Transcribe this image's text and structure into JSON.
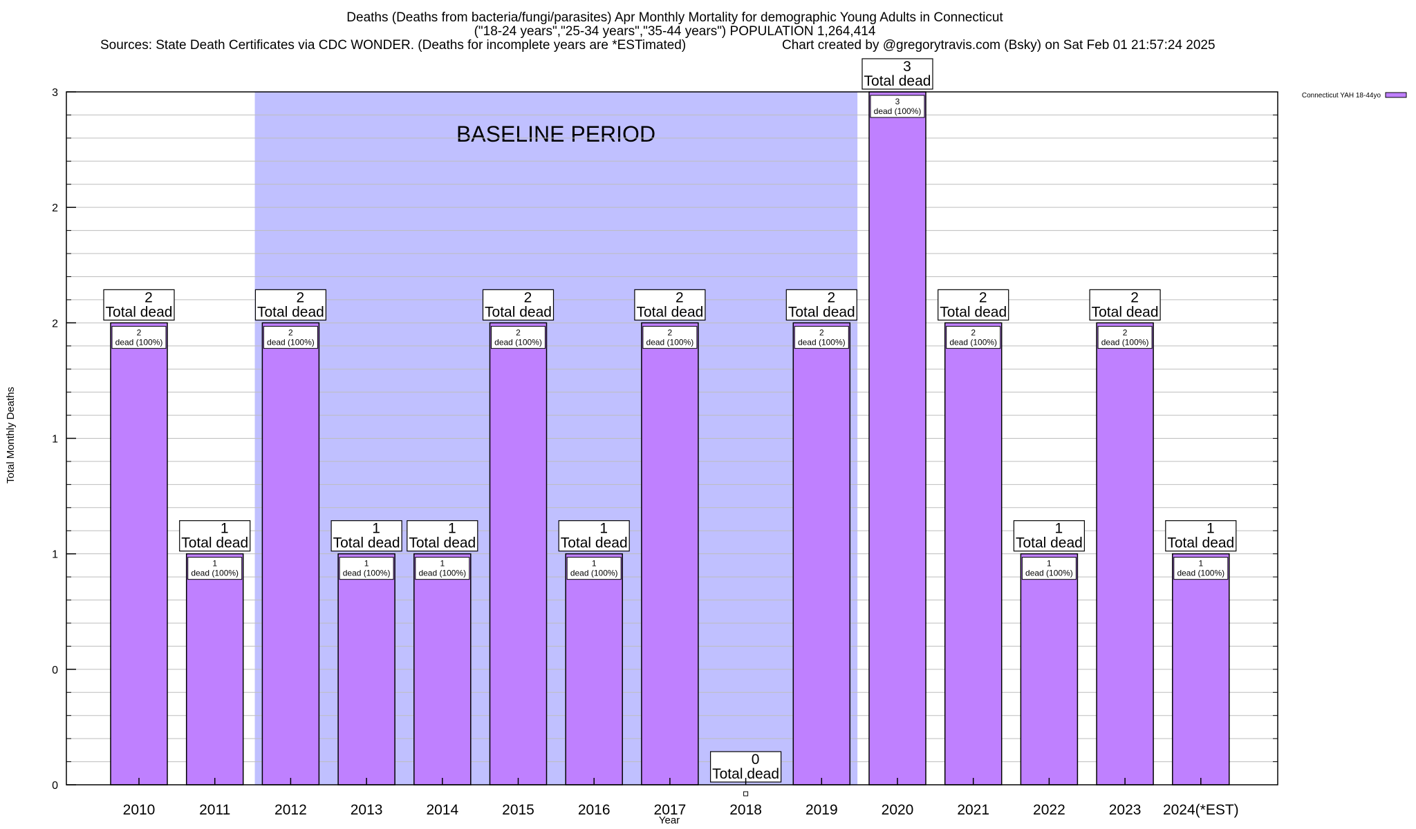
{
  "title": {
    "line1": "Deaths (Deaths from bacteria/fungi/parasites) Apr Monthly Mortality for demographic Young Adults in Connecticut",
    "line2": "(\"18-24 years\",\"25-34 years\",\"35-44 years\") POPULATION 1,264,414",
    "line3_left": "Sources: State Death Certificates via CDC WONDER. (Deaths for incomplete years are *ESTimated)",
    "line3_right": "Chart created by @gregorytravis.com (Bsky) on Sat Feb 01 21:57:24 2025"
  },
  "legend": {
    "label": "Connecticut YAH 18-44yo",
    "color": "#bf80ff"
  },
  "baseline": {
    "label": "BASELINE PERIOD",
    "color": "#c0c0ff",
    "from": "2012",
    "to": "2019"
  },
  "chart_data": {
    "type": "bar",
    "xlabel": "Year",
    "ylabel": "Total Monthly Deaths",
    "ylim": [
      0,
      3
    ],
    "ytick_values": [
      0,
      0.5,
      1,
      1.5,
      2,
      2.5,
      3
    ],
    "ytick_labels": [
      "0",
      "0",
      "1",
      "1",
      "2",
      "2",
      "3"
    ],
    "grid": true,
    "legend_position": "top-right",
    "categories": [
      "2010",
      "2011",
      "2012",
      "2013",
      "2014",
      "2015",
      "2016",
      "2017",
      "2018",
      "2019",
      "2020",
      "2021",
      "2022",
      "2023",
      "2024(*EST)"
    ],
    "series": [
      {
        "name": "Connecticut YAH 18-44yo",
        "color": "#bf80ff",
        "values": [
          2,
          1,
          2,
          1,
          1,
          2,
          1,
          2,
          0,
          2,
          3,
          2,
          1,
          2,
          1
        ]
      }
    ],
    "total_label": "Total dead",
    "bar_label_suffix": "dead (100%)"
  }
}
